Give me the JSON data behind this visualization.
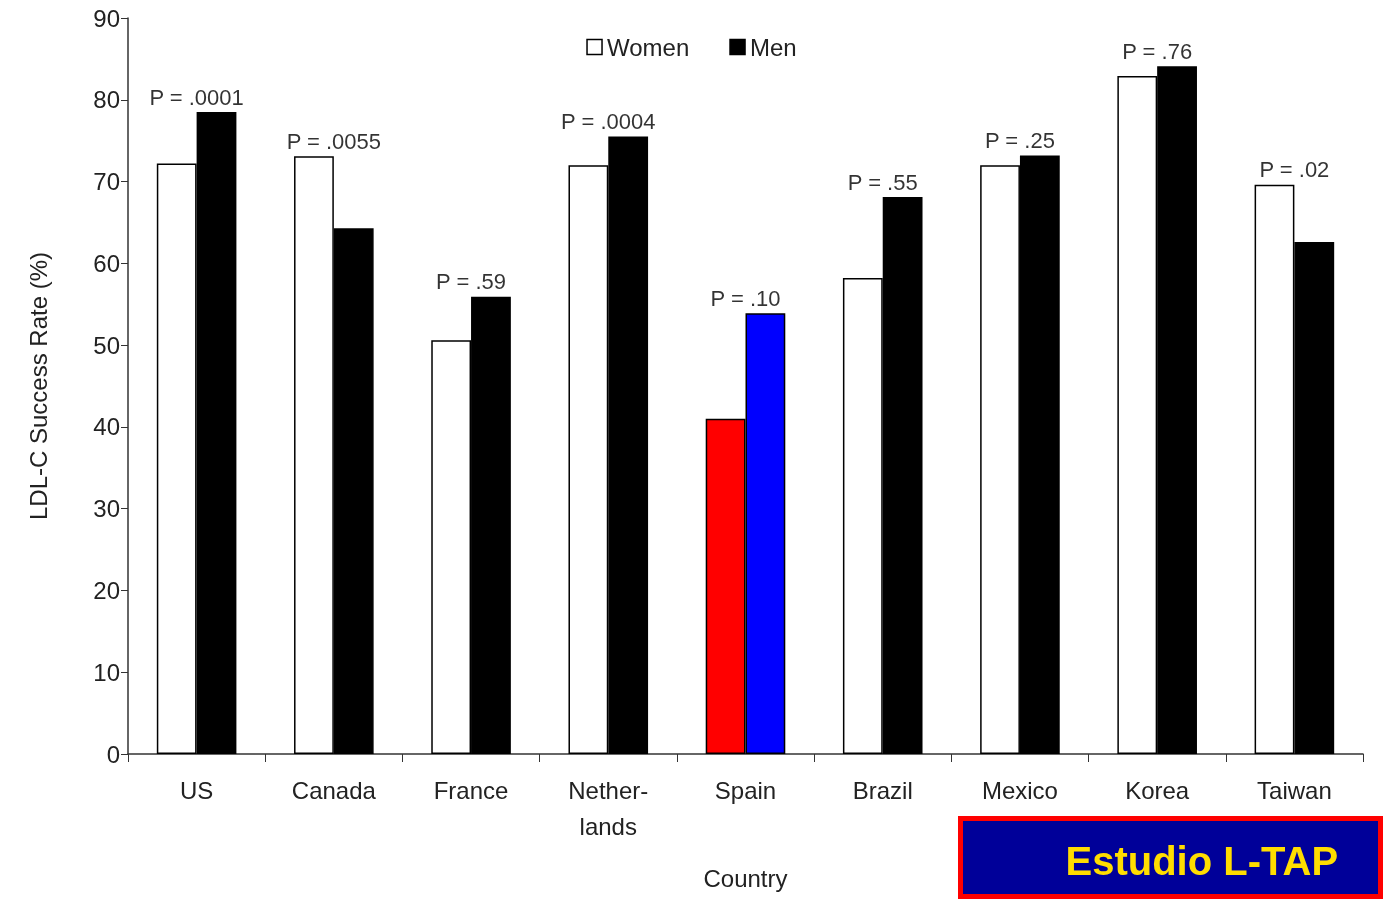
{
  "chart_data": {
    "type": "bar",
    "xlabel": "Country",
    "ylabel": "LDL-C Success Rate (%)",
    "categories": [
      "US",
      "Canada",
      "France",
      "Nether-\nlands",
      "Spain",
      "Brazil",
      "Mexico",
      "Korea",
      "Taiwan"
    ],
    "series": [
      {
        "name": "Women",
        "color": "#ffffff",
        "values": [
          72.2,
          73.1,
          50.6,
          72,
          41,
          58.2,
          72,
          82.9,
          69.6
        ],
        "colors": [
          "#ffffff",
          "#ffffff",
          "#ffffff",
          "#ffffff",
          "#ff0000",
          "#ffffff",
          "#ffffff",
          "#ffffff",
          "#ffffff"
        ]
      },
      {
        "name": "Men",
        "color": "#000000",
        "values": [
          78.5,
          64.3,
          55.9,
          75.5,
          53.9,
          68.1,
          73.2,
          84.1,
          62.6
        ],
        "colors": [
          "#000000",
          "#000000",
          "#000000",
          "#000000",
          "#0000ff",
          "#000000",
          "#000000",
          "#000000",
          "#000000"
        ]
      }
    ],
    "ylim": [
      0,
      90
    ],
    "yticks": [
      0,
      10,
      20,
      30,
      40,
      50,
      60,
      70,
      80,
      90
    ],
    "grid": false,
    "legend": "top",
    "annotations": [
      {
        "text": "P = .0001",
        "x": "US",
        "y": 78.5
      },
      {
        "text": "P = .0055",
        "x": "Canada",
        "y": 73.1
      },
      {
        "text": "P = .59",
        "x": "France",
        "y": 55.9
      },
      {
        "text": "P = .0004",
        "x": "Nether-\nlands",
        "y": 75.5
      },
      {
        "text": "P = .10",
        "x": "Spain",
        "y": 53.9
      },
      {
        "text": "P = .55",
        "x": "Brazil",
        "y": 68.1
      },
      {
        "text": "P = .25",
        "x": "Mexico",
        "y": 73.2
      },
      {
        "text": "P = .76",
        "x": "Korea",
        "y": 84.1
      },
      {
        "text": "P = .02",
        "x": "Taiwan",
        "y": 69.6
      },
      "Estudio L-TAP"
    ]
  }
}
